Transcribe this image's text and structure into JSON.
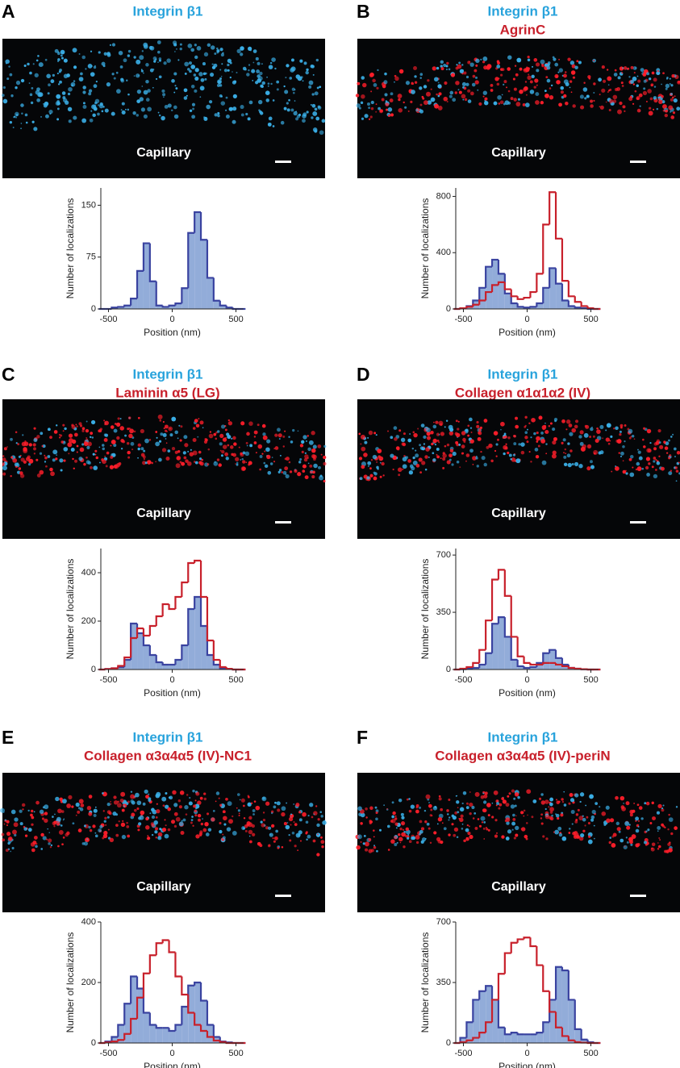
{
  "chart_data": [
    {
      "type": "line",
      "step": true,
      "panel": "A",
      "annotation": "Capillary",
      "xlabel": "Position (nm)",
      "ylabel": "Number of localizations",
      "x": [
        -550,
        -500,
        -450,
        -400,
        -350,
        -300,
        -250,
        -200,
        -150,
        -100,
        -50,
        0,
        50,
        100,
        150,
        200,
        250,
        300,
        350,
        400,
        450,
        500,
        550
      ],
      "xlim": [
        -560,
        560
      ],
      "xticks": [
        -500,
        0,
        500
      ],
      "ylim": [
        0,
        175
      ],
      "yticks": [
        0,
        75,
        150
      ],
      "series": [
        {
          "name": "Integrin β1",
          "color": "#3a43a0",
          "fill": "#92acd9",
          "label_color": "#29a3dc",
          "values": [
            0,
            0,
            2,
            3,
            5,
            15,
            55,
            95,
            40,
            5,
            3,
            5,
            8,
            30,
            110,
            140,
            100,
            45,
            12,
            5,
            2,
            0,
            0
          ]
        }
      ]
    },
    {
      "type": "line",
      "step": true,
      "panel": "B",
      "annotation": "Capillary",
      "xlabel": "Position (nm)",
      "ylabel": "Number of localizations",
      "x": [
        -550,
        -500,
        -450,
        -400,
        -350,
        -300,
        -250,
        -200,
        -150,
        -100,
        -50,
        0,
        50,
        100,
        150,
        200,
        250,
        300,
        350,
        400,
        450,
        500,
        550
      ],
      "xlim": [
        -560,
        560
      ],
      "xticks": [
        -500,
        0,
        500
      ],
      "ylim": [
        0,
        860
      ],
      "yticks": [
        0,
        400,
        800
      ],
      "series": [
        {
          "name": "Integrin β1",
          "color": "#3a43a0",
          "fill": "#92acd9",
          "label_color": "#29a3dc",
          "values": [
            0,
            5,
            20,
            60,
            150,
            300,
            350,
            250,
            110,
            40,
            15,
            10,
            15,
            40,
            150,
            290,
            180,
            60,
            20,
            10,
            5,
            0,
            0
          ]
        },
        {
          "name": "AgrinC",
          "color": "#c8202b",
          "fill": null,
          "label_color": "#c8202b",
          "values": [
            0,
            5,
            15,
            30,
            60,
            120,
            170,
            190,
            140,
            90,
            70,
            80,
            120,
            250,
            600,
            830,
            500,
            200,
            90,
            50,
            20,
            5,
            0
          ]
        }
      ]
    },
    {
      "type": "line",
      "step": true,
      "panel": "C",
      "annotation": "Capillary",
      "xlabel": "Position (nm)",
      "ylabel": "Number of localizations",
      "x": [
        -550,
        -500,
        -450,
        -400,
        -350,
        -300,
        -250,
        -200,
        -150,
        -100,
        -50,
        0,
        50,
        100,
        150,
        200,
        250,
        300,
        350,
        400,
        450,
        500,
        550
      ],
      "xlim": [
        -560,
        560
      ],
      "xticks": [
        -500,
        0,
        500
      ],
      "ylim": [
        0,
        500
      ],
      "yticks": [
        0,
        200,
        400
      ],
      "series": [
        {
          "name": "Integrin β1",
          "color": "#3a43a0",
          "fill": "#92acd9",
          "label_color": "#29a3dc",
          "values": [
            0,
            2,
            5,
            10,
            40,
            190,
            150,
            100,
            60,
            30,
            20,
            20,
            40,
            100,
            250,
            300,
            180,
            60,
            20,
            5,
            2,
            0,
            0
          ]
        },
        {
          "name": "Laminin α5 (LG)",
          "color": "#c8202b",
          "fill": null,
          "label_color": "#c8202b",
          "values": [
            0,
            2,
            5,
            15,
            50,
            130,
            170,
            140,
            180,
            220,
            270,
            250,
            300,
            360,
            440,
            450,
            300,
            120,
            40,
            10,
            3,
            0,
            0
          ]
        }
      ]
    },
    {
      "type": "line",
      "step": true,
      "panel": "D",
      "annotation": "Capillary",
      "xlabel": "Position (nm)",
      "ylabel": "Number of localizations",
      "x": [
        -550,
        -500,
        -450,
        -400,
        -350,
        -300,
        -250,
        -200,
        -150,
        -100,
        -50,
        0,
        50,
        100,
        150,
        200,
        250,
        300,
        350,
        400,
        450,
        500,
        550
      ],
      "xlim": [
        -560,
        560
      ],
      "xticks": [
        -500,
        0,
        500
      ],
      "ylim": [
        0,
        740
      ],
      "yticks": [
        0,
        350,
        700
      ],
      "series": [
        {
          "name": "Integrin β1",
          "color": "#3a43a0",
          "fill": "#92acd9",
          "label_color": "#29a3dc",
          "values": [
            0,
            2,
            5,
            10,
            30,
            100,
            280,
            320,
            200,
            60,
            20,
            10,
            15,
            40,
            100,
            120,
            70,
            30,
            10,
            5,
            2,
            0,
            0
          ]
        },
        {
          "name": "Collagen α1α1α2 (IV)",
          "color": "#c8202b",
          "fill": null,
          "label_color": "#c8202b",
          "values": [
            0,
            5,
            15,
            40,
            120,
            300,
            550,
            610,
            450,
            200,
            80,
            40,
            30,
            30,
            40,
            40,
            30,
            20,
            10,
            5,
            2,
            0,
            0
          ]
        }
      ]
    },
    {
      "type": "line",
      "step": true,
      "panel": "E",
      "annotation": "Capillary",
      "xlabel": "Position (nm)",
      "ylabel": "Number of localizations",
      "x": [
        -550,
        -500,
        -450,
        -400,
        -350,
        -300,
        -250,
        -200,
        -150,
        -100,
        -50,
        0,
        50,
        100,
        150,
        200,
        250,
        300,
        350,
        400,
        450,
        500,
        550
      ],
      "xlim": [
        -560,
        560
      ],
      "xticks": [
        -500,
        0,
        500
      ],
      "ylim": [
        0,
        400
      ],
      "yticks": [
        0,
        200,
        400
      ],
      "series": [
        {
          "name": "Integrin β1",
          "color": "#3a43a0",
          "fill": "#92acd9",
          "label_color": "#29a3dc",
          "values": [
            0,
            5,
            20,
            60,
            130,
            220,
            180,
            100,
            60,
            50,
            50,
            40,
            60,
            120,
            190,
            200,
            140,
            60,
            20,
            5,
            2,
            0,
            0
          ]
        },
        {
          "name": "Collagen α3α4α5 (IV)-NC1",
          "color": "#c8202b",
          "fill": null,
          "label_color": "#c8202b",
          "values": [
            0,
            2,
            5,
            10,
            30,
            80,
            150,
            230,
            290,
            330,
            340,
            300,
            220,
            160,
            100,
            60,
            40,
            20,
            8,
            3,
            0,
            0,
            0
          ]
        }
      ]
    },
    {
      "type": "line",
      "step": true,
      "panel": "F",
      "annotation": "Capillary",
      "xlabel": "Position (nm)",
      "ylabel": "Number of localizations",
      "x": [
        -550,
        -500,
        -450,
        -400,
        -350,
        -300,
        -250,
        -200,
        -150,
        -100,
        -50,
        0,
        50,
        100,
        150,
        200,
        250,
        300,
        350,
        400,
        450,
        500,
        550
      ],
      "xlim": [
        -560,
        560
      ],
      "xticks": [
        -500,
        0,
        500
      ],
      "ylim": [
        0,
        700
      ],
      "yticks": [
        0,
        350,
        700
      ],
      "series": [
        {
          "name": "Integrin β1",
          "color": "#3a43a0",
          "fill": "#92acd9",
          "label_color": "#29a3dc",
          "values": [
            0,
            30,
            120,
            250,
            300,
            330,
            250,
            90,
            50,
            60,
            50,
            50,
            50,
            60,
            120,
            250,
            440,
            420,
            250,
            80,
            20,
            5,
            0
          ]
        },
        {
          "name": "Collagen α3α4α5 (IV)-periN",
          "color": "#c8202b",
          "fill": null,
          "label_color": "#c8202b",
          "values": [
            0,
            5,
            15,
            30,
            60,
            120,
            250,
            400,
            520,
            580,
            600,
            610,
            560,
            450,
            300,
            180,
            90,
            40,
            15,
            5,
            2,
            0,
            0
          ]
        }
      ]
    }
  ]
}
